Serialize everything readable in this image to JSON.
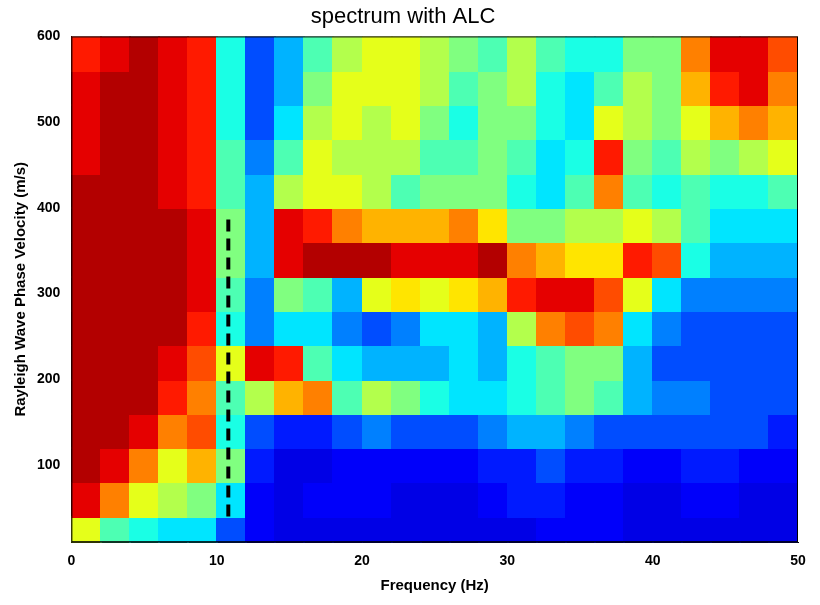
{
  "chart_data": {
    "type": "heatmap",
    "title": "spectrum with ALC",
    "x_label": "Frequency (Hz)",
    "y_label": "Rayleigh Wave Phase Velocity (m/s)",
    "xlim": [
      0,
      50
    ],
    "xticks": [
      0,
      10,
      20,
      30,
      40,
      50
    ],
    "ylim": [
      10,
      600
    ],
    "yticks": [
      100,
      200,
      300,
      400,
      500,
      600
    ],
    "grid": false,
    "x_edges": [
      0,
      2,
      4,
      6,
      8,
      10,
      12,
      14,
      16,
      18,
      20,
      22,
      24,
      26,
      28,
      30,
      32,
      34,
      36,
      38,
      40,
      42,
      44,
      46,
      48,
      50
    ],
    "y_edges": [
      0,
      40,
      80,
      120,
      160,
      200,
      240,
      280,
      320,
      360,
      400,
      440,
      480,
      520,
      560,
      600
    ],
    "cells": [
      [
        0.6,
        0.45,
        0.4,
        0.35,
        0.35,
        0.2,
        0.12,
        0.1,
        0.1,
        0.1,
        0.1,
        0.1,
        0.1,
        0.1,
        0.1,
        0.1,
        0.12,
        0.12,
        0.12,
        0.1,
        0.1,
        0.1,
        0.1,
        0.1,
        0.1
      ],
      [
        0.9,
        0.75,
        0.6,
        0.55,
        0.5,
        0.35,
        0.12,
        0.1,
        0.12,
        0.12,
        0.12,
        0.1,
        0.1,
        0.1,
        0.12,
        0.15,
        0.15,
        0.12,
        0.12,
        0.1,
        0.1,
        0.12,
        0.12,
        0.1,
        0.1
      ],
      [
        0.95,
        0.9,
        0.75,
        0.6,
        0.7,
        0.5,
        0.15,
        0.1,
        0.1,
        0.12,
        0.12,
        0.12,
        0.12,
        0.12,
        0.15,
        0.15,
        0.2,
        0.15,
        0.15,
        0.12,
        0.12,
        0.15,
        0.15,
        0.12,
        0.12
      ],
      [
        0.95,
        0.95,
        0.9,
        0.75,
        0.8,
        0.4,
        0.2,
        0.15,
        0.15,
        0.2,
        0.25,
        0.2,
        0.2,
        0.2,
        0.25,
        0.3,
        0.3,
        0.25,
        0.2,
        0.2,
        0.2,
        0.2,
        0.2,
        0.2,
        0.15
      ],
      [
        0.95,
        0.95,
        0.95,
        0.85,
        0.75,
        0.45,
        0.55,
        0.7,
        0.75,
        0.45,
        0.55,
        0.5,
        0.4,
        0.35,
        0.35,
        0.4,
        0.45,
        0.5,
        0.45,
        0.3,
        0.25,
        0.25,
        0.2,
        0.2,
        0.2
      ],
      [
        0.95,
        0.95,
        0.95,
        0.9,
        0.8,
        0.6,
        0.9,
        0.85,
        0.45,
        0.35,
        0.3,
        0.3,
        0.3,
        0.35,
        0.3,
        0.4,
        0.45,
        0.5,
        0.5,
        0.3,
        0.2,
        0.2,
        0.2,
        0.2,
        0.2
      ],
      [
        0.95,
        0.95,
        0.95,
        0.95,
        0.85,
        0.4,
        0.25,
        0.35,
        0.35,
        0.25,
        0.2,
        0.25,
        0.35,
        0.35,
        0.3,
        0.55,
        0.75,
        0.8,
        0.75,
        0.35,
        0.25,
        0.2,
        0.2,
        0.2,
        0.2
      ],
      [
        0.95,
        0.95,
        0.95,
        0.95,
        0.9,
        0.45,
        0.25,
        0.5,
        0.45,
        0.3,
        0.6,
        0.65,
        0.6,
        0.65,
        0.7,
        0.85,
        0.9,
        0.9,
        0.8,
        0.6,
        0.35,
        0.25,
        0.25,
        0.25,
        0.25
      ],
      [
        0.95,
        0.95,
        0.95,
        0.95,
        0.9,
        0.5,
        0.3,
        0.9,
        0.95,
        0.95,
        0.95,
        0.9,
        0.9,
        0.9,
        0.95,
        0.75,
        0.7,
        0.65,
        0.65,
        0.85,
        0.8,
        0.4,
        0.3,
        0.3,
        0.3
      ],
      [
        0.95,
        0.95,
        0.95,
        0.95,
        0.9,
        0.5,
        0.3,
        0.9,
        0.85,
        0.75,
        0.7,
        0.7,
        0.7,
        0.75,
        0.65,
        0.5,
        0.5,
        0.55,
        0.55,
        0.6,
        0.55,
        0.45,
        0.35,
        0.35,
        0.35
      ],
      [
        0.95,
        0.95,
        0.95,
        0.9,
        0.85,
        0.45,
        0.3,
        0.55,
        0.6,
        0.6,
        0.55,
        0.45,
        0.5,
        0.5,
        0.5,
        0.4,
        0.35,
        0.45,
        0.75,
        0.45,
        0.4,
        0.45,
        0.4,
        0.4,
        0.45
      ],
      [
        0.9,
        0.95,
        0.95,
        0.9,
        0.85,
        0.45,
        0.25,
        0.45,
        0.6,
        0.55,
        0.55,
        0.55,
        0.45,
        0.45,
        0.5,
        0.45,
        0.35,
        0.4,
        0.85,
        0.5,
        0.45,
        0.55,
        0.5,
        0.55,
        0.6
      ],
      [
        0.9,
        0.95,
        0.95,
        0.9,
        0.85,
        0.4,
        0.2,
        0.35,
        0.55,
        0.6,
        0.55,
        0.6,
        0.5,
        0.4,
        0.5,
        0.5,
        0.4,
        0.35,
        0.6,
        0.55,
        0.5,
        0.6,
        0.7,
        0.75,
        0.7
      ],
      [
        0.9,
        0.95,
        0.95,
        0.9,
        0.85,
        0.4,
        0.2,
        0.3,
        0.5,
        0.6,
        0.6,
        0.6,
        0.55,
        0.45,
        0.5,
        0.55,
        0.4,
        0.35,
        0.45,
        0.55,
        0.5,
        0.7,
        0.85,
        0.9,
        0.75
      ],
      [
        0.85,
        0.9,
        0.95,
        0.9,
        0.85,
        0.4,
        0.2,
        0.3,
        0.45,
        0.55,
        0.6,
        0.6,
        0.55,
        0.5,
        0.45,
        0.55,
        0.45,
        0.4,
        0.4,
        0.5,
        0.5,
        0.75,
        0.9,
        0.9,
        0.8
      ]
    ],
    "lines": [
      {
        "x": [
          10.8,
          10.8
        ],
        "y": [
          40,
          390
        ],
        "color": "#000000",
        "line_style": "dashed"
      }
    ]
  }
}
